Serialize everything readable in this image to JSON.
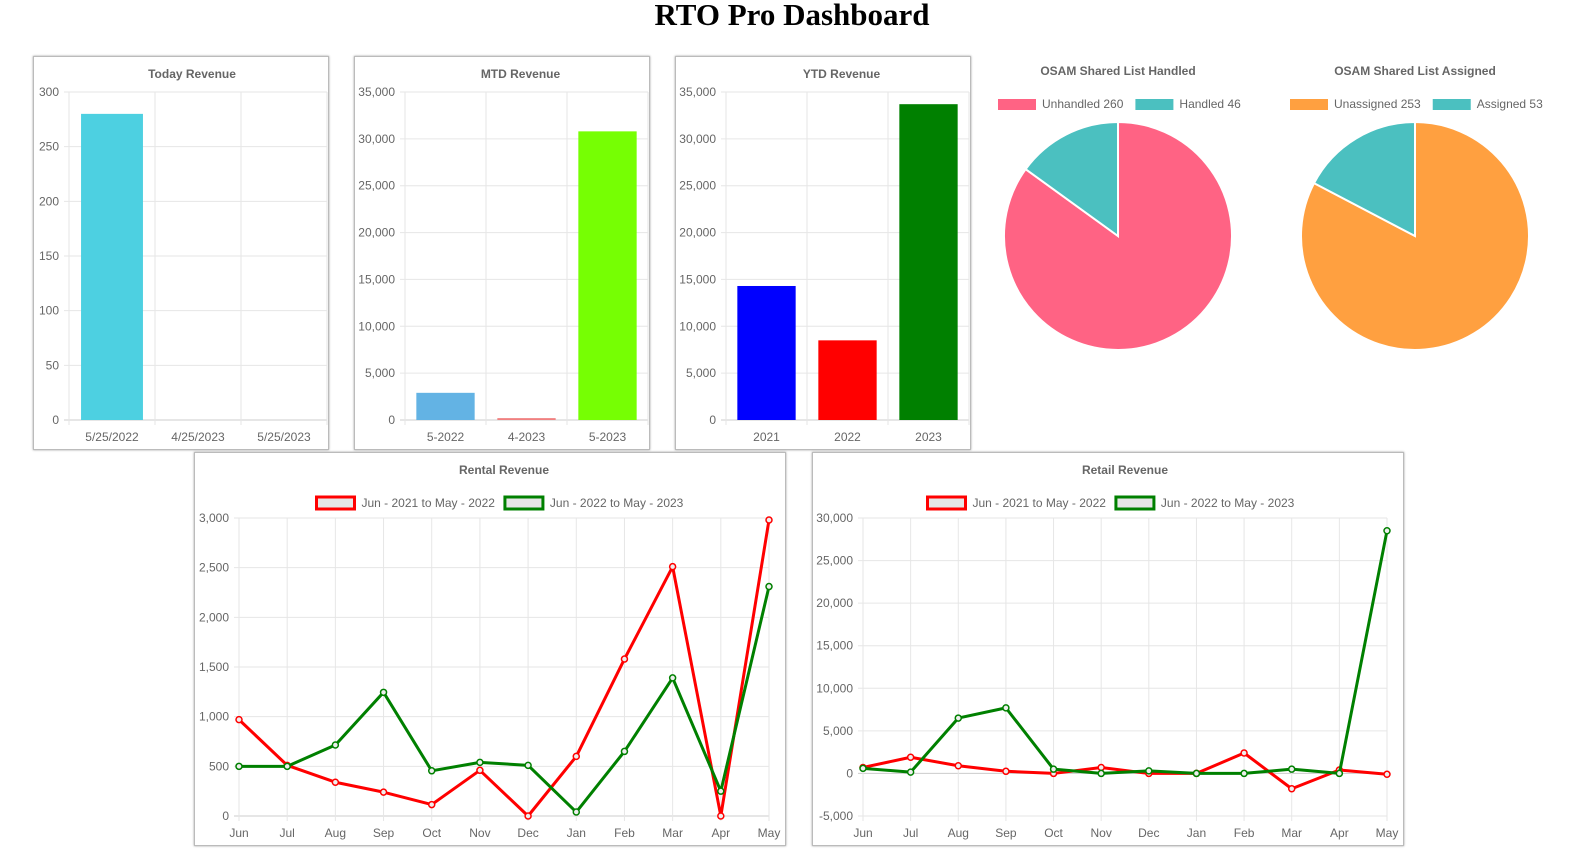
{
  "page_title": "RTO Pro Dashboard",
  "chart_data": [
    {
      "id": "today",
      "type": "bar",
      "title": "Today Revenue",
      "categories": [
        "5/25/2022",
        "4/25/2023",
        "5/25/2023"
      ],
      "values": [
        280,
        0,
        0
      ],
      "colors": [
        "#4dd0e1",
        "#4dd0e1",
        "#4dd0e1"
      ],
      "ylim": [
        0,
        300
      ],
      "ystep": 50
    },
    {
      "id": "mtd",
      "type": "bar",
      "title": "MTD Revenue",
      "categories": [
        "5-2022",
        "4-2023",
        "5-2023"
      ],
      "values": [
        2900,
        200,
        30800
      ],
      "colors": [
        "#63b3e4",
        "#f08080",
        "#76ff03"
      ],
      "ylim": [
        0,
        35000
      ],
      "ystep": 5000
    },
    {
      "id": "ytd",
      "type": "bar",
      "title": "YTD Revenue",
      "categories": [
        "2021",
        "2022",
        "2023"
      ],
      "values": [
        14300,
        8500,
        33700
      ],
      "colors": [
        "#0000ff",
        "#ff0000",
        "#008000"
      ],
      "ylim": [
        0,
        35000
      ],
      "ystep": 5000
    },
    {
      "id": "handled",
      "type": "pie",
      "title": "OSAM Shared List Handled",
      "labels": [
        "Unhandled 260",
        "Handled 46"
      ],
      "values": [
        260,
        46
      ],
      "colors": [
        "#ff6384",
        "#4bc0c0"
      ]
    },
    {
      "id": "assigned",
      "type": "pie",
      "title": "OSAM Shared List Assigned",
      "labels": [
        "Unassigned 253",
        "Assigned 53"
      ],
      "values": [
        253,
        53
      ],
      "colors": [
        "#ffa040",
        "#4bc0c0"
      ]
    },
    {
      "id": "rental",
      "type": "line",
      "title": "Rental Revenue",
      "categories": [
        "Jun",
        "Jul",
        "Aug",
        "Sep",
        "Oct",
        "Nov",
        "Dec",
        "Jan",
        "Feb",
        "Mar",
        "Apr",
        "May"
      ],
      "ylim": [
        0,
        3000
      ],
      "ystep": 500,
      "series": [
        {
          "name": "Jun - 2021 to May - 2022",
          "color": "#ff0000",
          "values": [
            970,
            510,
            340,
            240,
            115,
            460,
            0,
            600,
            1580,
            2510,
            0,
            2980
          ]
        },
        {
          "name": "Jun - 2022 to May - 2023",
          "color": "#008000",
          "values": [
            500,
            500,
            715,
            1245,
            455,
            540,
            510,
            40,
            650,
            1390,
            250,
            2310
          ]
        }
      ]
    },
    {
      "id": "retail",
      "type": "line",
      "title": "Retail Revenue",
      "categories": [
        "Jun",
        "Jul",
        "Aug",
        "Sep",
        "Oct",
        "Nov",
        "Dec",
        "Jan",
        "Feb",
        "Mar",
        "Apr",
        "May"
      ],
      "ylim": [
        -5000,
        30000
      ],
      "ystep": 5000,
      "series": [
        {
          "name": "Jun - 2021 to May - 2022",
          "color": "#ff0000",
          "values": [
            700,
            1900,
            900,
            250,
            0,
            700,
            0,
            0,
            2400,
            -1800,
            400,
            -100
          ]
        },
        {
          "name": "Jun - 2022 to May - 2023",
          "color": "#008000",
          "values": [
            600,
            150,
            6500,
            7700,
            500,
            0,
            300,
            0,
            0,
            500,
            0,
            28500
          ]
        }
      ]
    }
  ]
}
